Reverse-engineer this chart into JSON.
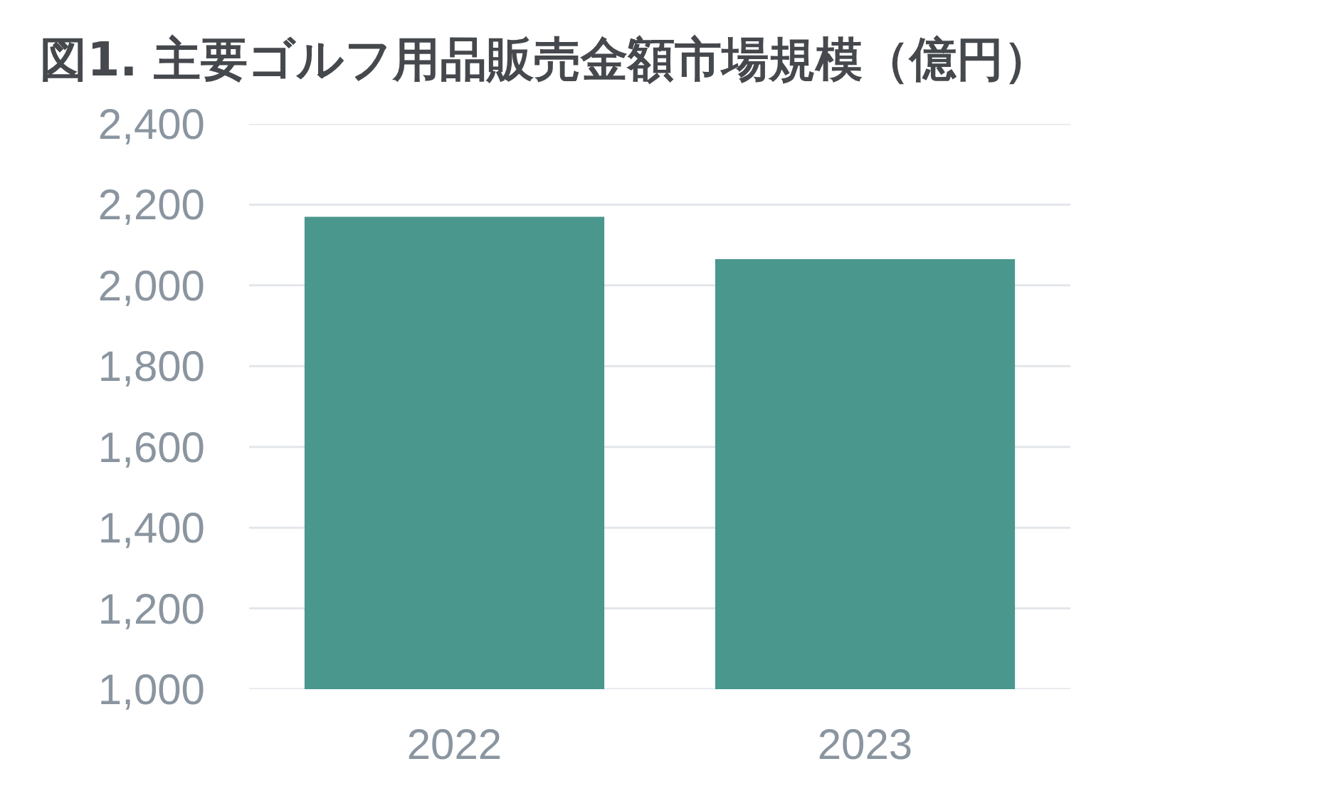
{
  "chart_data": {
    "type": "bar",
    "title": "図1. 主要ゴルフ用品販売金額市場規模（億円）",
    "categories": [
      "2022",
      "2023"
    ],
    "values": [
      2170,
      2065
    ],
    "color": "#4a978e",
    "ylim": [
      1000,
      2400
    ],
    "yticks": [
      {
        "value": 1000,
        "label": "1,000"
      },
      {
        "value": 1200,
        "label": "1,200"
      },
      {
        "value": 1400,
        "label": "1,400"
      },
      {
        "value": 1600,
        "label": "1,600"
      },
      {
        "value": 1800,
        "label": "1,800"
      },
      {
        "value": 2000,
        "label": "2,000"
      },
      {
        "value": 2200,
        "label": "2,200"
      },
      {
        "value": 2400,
        "label": "2,400"
      }
    ],
    "grid": "y"
  }
}
